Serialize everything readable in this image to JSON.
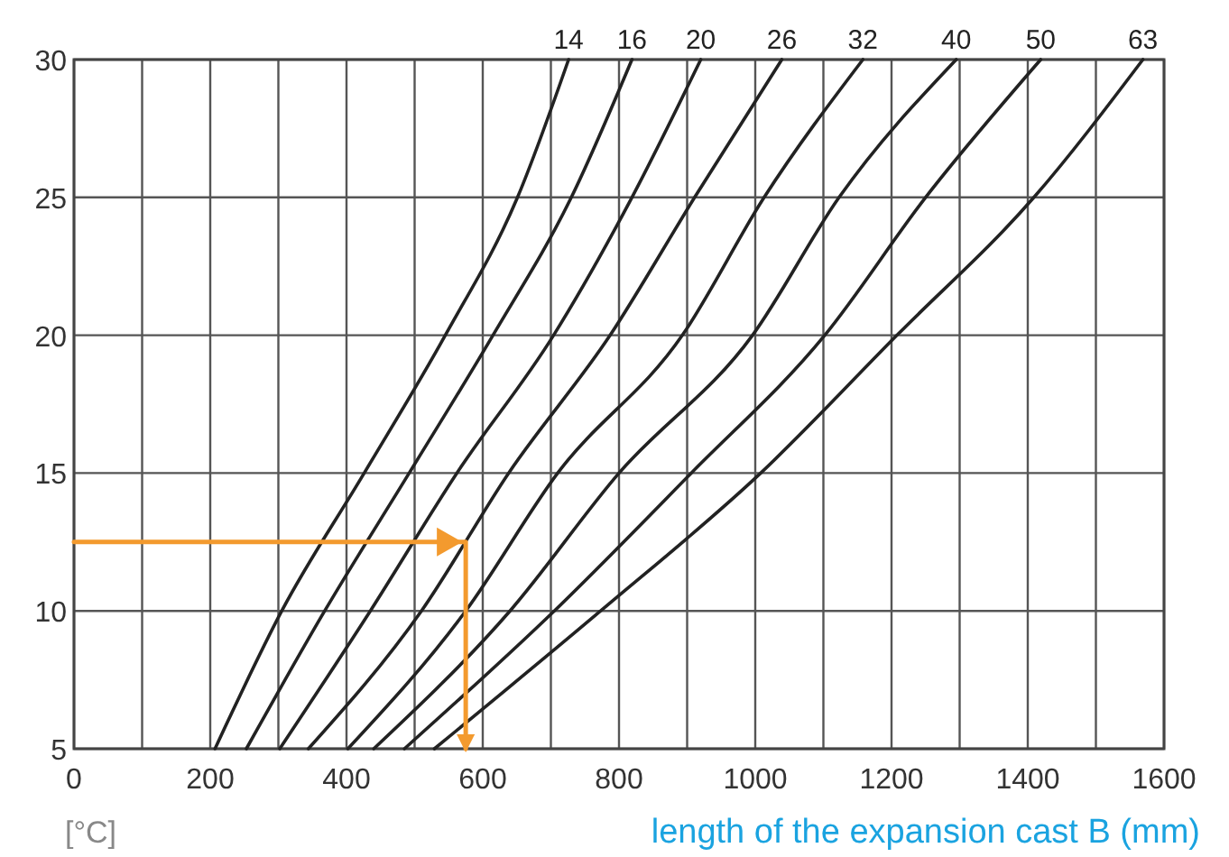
{
  "chart_data": {
    "type": "line",
    "xlabel": "length of the expansion cast B (mm)",
    "annotations": [
      "[°C]"
    ],
    "xlim": [
      0,
      1600
    ],
    "ylim": [
      5,
      30
    ],
    "xticks": [
      0,
      {
        "value": 100,
        "label": null
      },
      200,
      {
        "value": 300,
        "label": null
      },
      400,
      {
        "value": 500,
        "label": null
      },
      600,
      {
        "value": 700,
        "label": null
      },
      800,
      {
        "value": 900,
        "label": null
      },
      1000,
      {
        "value": 1100,
        "label": null
      },
      1200,
      {
        "value": 1300,
        "label": null
      },
      1400,
      {
        "value": 1500,
        "label": null
      },
      1600
    ],
    "yticks": [
      5,
      10,
      15,
      20,
      25,
      30
    ],
    "grid": true,
    "marker": "none",
    "line_style": "solid",
    "series": [
      {
        "name": "14",
        "color": "#222222",
        "x": [
          207,
          305,
          426,
          545,
          651,
          726
        ],
        "values": [
          5,
          10,
          15,
          20,
          25,
          30
        ]
      },
      {
        "name": "16",
        "color": "#222222",
        "x": [
          253,
          368,
          492,
          615,
          730,
          819
        ],
        "values": [
          5,
          10,
          15,
          20,
          25,
          30
        ]
      },
      {
        "name": "20",
        "color": "#222222",
        "x": [
          302,
          435,
          562,
          704,
          819,
          920
        ],
        "values": [
          5,
          10,
          15,
          20,
          25,
          30
        ]
      },
      {
        "name": "26",
        "color": "#222222",
        "x": [
          344,
          510,
          638,
          787,
          911,
          1039
        ],
        "values": [
          5,
          10,
          15,
          20,
          25,
          30
        ]
      },
      {
        "name": "32",
        "color": "#222222",
        "x": [
          402,
          575,
          710,
          893,
          1013,
          1158
        ],
        "values": [
          5,
          10,
          15,
          20,
          25,
          30
        ]
      },
      {
        "name": "40",
        "color": "#222222",
        "x": [
          440,
          640,
          800,
          996,
          1123,
          1295
        ],
        "values": [
          5,
          10,
          15,
          20,
          25,
          30
        ]
      },
      {
        "name": "50",
        "color": "#222222",
        "x": [
          485,
          705,
          906,
          1102,
          1250,
          1419
        ],
        "values": [
          5,
          10,
          15,
          20,
          25,
          30
        ]
      },
      {
        "name": "63",
        "color": "#222222",
        "x": [
          529,
          773,
          1008,
          1208,
          1409,
          1569
        ],
        "values": [
          5,
          10,
          15,
          20,
          25,
          30
        ]
      },
      {
        "color": "#f39a2e",
        "x": [
          0,
          575,
          575
        ],
        "values": [
          12.5,
          12.5,
          5
        ]
      }
    ]
  }
}
